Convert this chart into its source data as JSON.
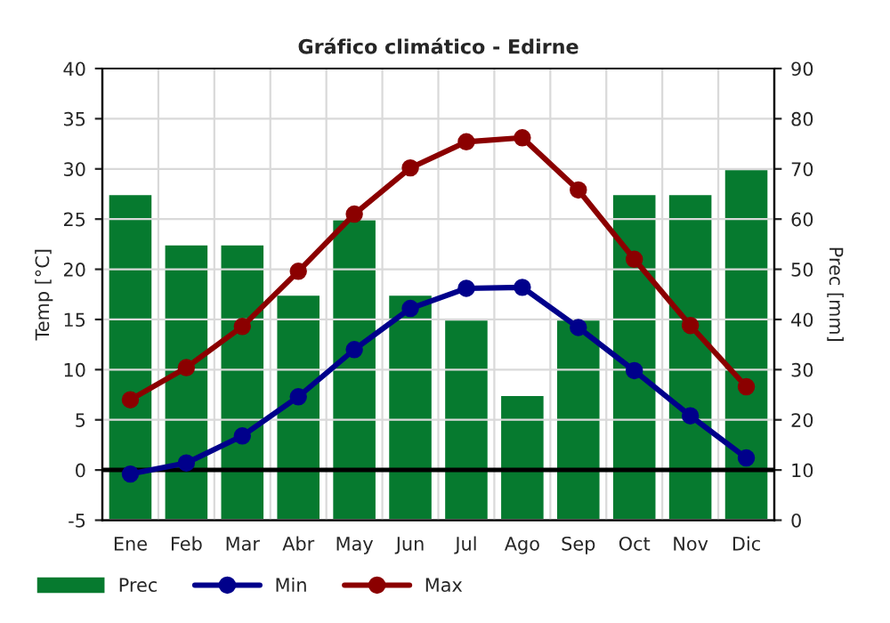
{
  "chart_data": {
    "type": "bar",
    "title": "Gráfico climático - Edirne",
    "ylabel": "Temp [°C]",
    "y2label": "Prec [mm]",
    "categories": [
      "Ene",
      "Feb",
      "Mar",
      "Abr",
      "May",
      "Jun",
      "Jul",
      "Ago",
      "Sep",
      "Oct",
      "Nov",
      "Dic"
    ],
    "series": [
      {
        "name": "Prec",
        "axis": "y2",
        "color": "#067a2f",
        "values": [
          65,
          55,
          55,
          45,
          60,
          45,
          40,
          25,
          40,
          65,
          65,
          70
        ]
      },
      {
        "name": "Min",
        "type": "line",
        "color": "#00008b",
        "marker": "circle",
        "values": [
          -0.4,
          0.7,
          3.4,
          7.3,
          12,
          16.1,
          18.1,
          18.2,
          14.2,
          9.9,
          5.4,
          1.2
        ]
      },
      {
        "name": "Max",
        "type": "line",
        "color": "#8b0000",
        "marker": "circle",
        "values": [
          7,
          10.2,
          14.3,
          19.8,
          25.5,
          30.1,
          32.7,
          33.1,
          27.9,
          21,
          14.4,
          8.3
        ]
      }
    ],
    "ylim": [
      -5,
      40
    ],
    "yticks": [
      -5,
      0,
      5,
      10,
      15,
      20,
      25,
      30,
      35,
      40
    ],
    "y2lim": [
      0,
      90
    ],
    "y2ticks": [
      0,
      10,
      20,
      30,
      40,
      50,
      60,
      70,
      80,
      90
    ],
    "ref_lines": [
      {
        "axis": "y",
        "value": 0,
        "color": "#000000"
      }
    ],
    "grid": true,
    "legend": "bottom"
  }
}
